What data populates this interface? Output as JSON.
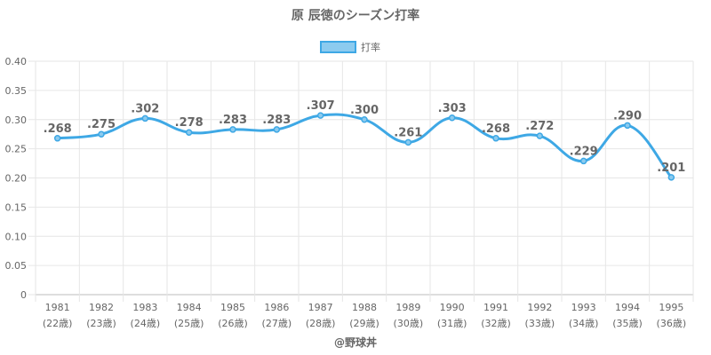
{
  "chart_data": {
    "type": "line",
    "title": "原 辰徳のシーズン打率",
    "legend": {
      "label": "打率",
      "position": "top"
    },
    "categories": [
      "1981",
      "1982",
      "1983",
      "1984",
      "1985",
      "1986",
      "1987",
      "1988",
      "1989",
      "1990",
      "1991",
      "1992",
      "1993",
      "1994",
      "1995"
    ],
    "category_sublabels": [
      "(22歳)",
      "(23歳)",
      "(24歳)",
      "(25歳)",
      "(26歳)",
      "(27歳)",
      "(28歳)",
      "(29歳)",
      "(30歳)",
      "(31歳)",
      "(32歳)",
      "(33歳)",
      "(34歳)",
      "(35歳)",
      "(36歳)"
    ],
    "series": [
      {
        "name": "打率",
        "values": [
          0.268,
          0.275,
          0.302,
          0.278,
          0.283,
          0.283,
          0.307,
          0.3,
          0.261,
          0.303,
          0.268,
          0.272,
          0.229,
          0.29,
          0.201
        ],
        "data_labels": [
          ".268",
          ".275",
          ".302",
          ".278",
          ".283",
          ".283",
          ".307",
          ".300",
          ".261",
          ".303",
          ".268",
          ".272",
          ".229",
          ".290",
          ".201"
        ]
      }
    ],
    "y_ticks": [
      "0",
      "0.05",
      "0.10",
      "0.15",
      "0.20",
      "0.25",
      "0.30",
      "0.35",
      "0.40"
    ],
    "ylim": [
      0,
      0.4
    ],
    "grid": true,
    "colors": {
      "line": "#3ea8e5",
      "point_fill": "#8ccbef",
      "grid": "#e6e6e6",
      "text": "#666666"
    }
  },
  "credit": "@野球丼"
}
